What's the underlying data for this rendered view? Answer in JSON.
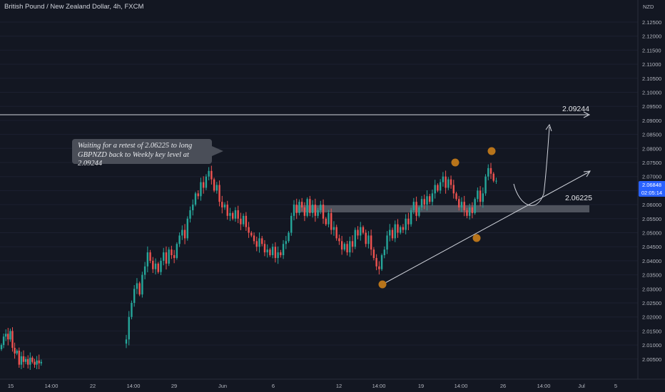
{
  "header": {
    "title": "British Pound / New Zealand Dollar, 4h, FXCM"
  },
  "annotation": {
    "line1": "Waiting for a retest of 2.06225 to long",
    "line2": "GBPNZD back to Weekly key level at 2.09244"
  },
  "levels": {
    "target_label": "2.09244",
    "retest_label": "2.06225"
  },
  "price_tag": {
    "price": "2.06848",
    "timer": "02:05:14"
  },
  "colors": {
    "background": "#131722",
    "up": "#26a69a",
    "down": "#ef5350",
    "accent": "#2962ff",
    "marker": "#b8741a"
  },
  "chart_data": {
    "type": "candlestick",
    "title": "British Pound / New Zealand Dollar, 4h, FXCM",
    "xlabel": "",
    "ylabel": "NZD",
    "ylim": [
      2.0035,
      2.1275
    ],
    "y_ticks": [
      "2.12500",
      "2.12000",
      "2.11500",
      "2.11000",
      "2.10500",
      "2.10000",
      "2.09500",
      "2.09000",
      "2.08500",
      "2.08000",
      "2.07500",
      "2.07000",
      "2.06500",
      "2.06000",
      "2.05500",
      "2.05000",
      "2.04500",
      "2.04000",
      "2.03500",
      "2.03000",
      "2.02500",
      "2.02000",
      "2.01500",
      "2.01000",
      "2.00500"
    ],
    "x_ticks": [
      "15",
      "14:00",
      "22",
      "14:00",
      "29",
      "Jun",
      "6",
      "12",
      "14:00",
      "19",
      "14:00",
      "26",
      "14:00",
      "Jul",
      "5"
    ],
    "current_price": 2.06848,
    "horizontal_levels": [
      {
        "label": "2.09244",
        "price": 2.09244
      },
      {
        "label": "2.06225",
        "price": 2.06225
      }
    ],
    "support_zone": [
      2.0599,
      2.0622
    ],
    "trendline": {
      "from": [
        "14:00",
        2.0352
      ],
      "to": [
        "5",
        2.0735
      ]
    },
    "markers": [
      {
        "time": "14:00",
        "price": 2.0352
      },
      {
        "time": "14:00",
        "price": 2.0737
      },
      {
        "time": "14:00",
        "price": 2.0507
      },
      {
        "time": "26",
        "price": 2.0802
      }
    ],
    "projected_path": "retest of 2.06225 then rally toward 2.09244",
    "series": [
      {
        "values": [
          2.01,
          2.013,
          2.014,
          2.012,
          2.015,
          2.009,
          2.007,
          2.008,
          2.003,
          2.006,
          2.004,
          2.005,
          2.003,
          2.0055,
          2.004,
          2.003,
          2.0045,
          2.0035,
          2.004
        ]
      },
      {
        "values": [
          2.012,
          2.02,
          2.025,
          2.03,
          2.032,
          2.028,
          2.035,
          2.038,
          2.043,
          2.04,
          2.037,
          2.039,
          2.036,
          2.04,
          2.043,
          2.039,
          2.044,
          2.042,
          2.041,
          2.046,
          2.049,
          2.051,
          2.048,
          2.055,
          2.058,
          2.06,
          2.064,
          2.063,
          2.068,
          2.066,
          2.07,
          2.072,
          2.069,
          2.065,
          2.067,
          2.061,
          2.059,
          2.06,
          2.056,
          2.057,
          2.055,
          2.058,
          2.055,
          2.053,
          2.056,
          2.052,
          2.05,
          2.049,
          2.047,
          2.045,
          2.048,
          2.046,
          2.043,
          2.044,
          2.042,
          2.045,
          2.041,
          2.043,
          2.042,
          2.046,
          2.047,
          2.05,
          2.056,
          2.06,
          2.057,
          2.061,
          2.059,
          2.056,
          2.062,
          2.057,
          2.06,
          2.056,
          2.058,
          2.06,
          2.055,
          2.053,
          2.057,
          2.051,
          2.052,
          2.048,
          2.047,
          2.044,
          2.046,
          2.043,
          2.047,
          2.045,
          2.051,
          2.049,
          2.052,
          2.05,
          2.046,
          2.049,
          2.044,
          2.041,
          2.038,
          2.037,
          2.042,
          2.044,
          2.049,
          2.051,
          2.048,
          2.053,
          2.05,
          2.052,
          2.051,
          2.055,
          2.053,
          2.058,
          2.061,
          2.056,
          2.059,
          2.062,
          2.06,
          2.063,
          2.061,
          2.064,
          2.067,
          2.065,
          2.068,
          2.07,
          2.066,
          2.069,
          2.067,
          2.064,
          2.062,
          2.059,
          2.061,
          2.058,
          2.056,
          2.059,
          2.057,
          2.062,
          2.065,
          2.061,
          2.064,
          2.07,
          2.073,
          2.071,
          2.0685,
          2.0685
        ]
      }
    ]
  }
}
